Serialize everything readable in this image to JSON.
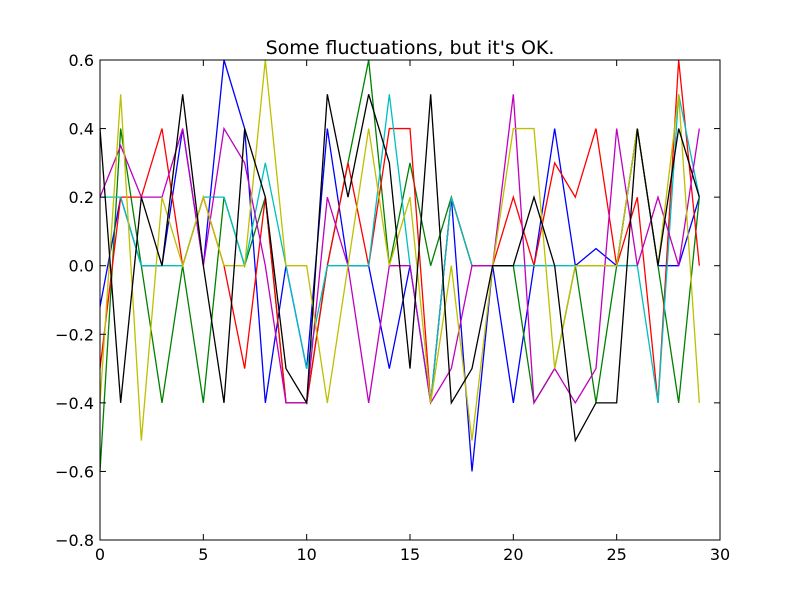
{
  "chart_data": {
    "type": "line",
    "title": "Some fluctuations, but it's OK.",
    "xlabel": "",
    "ylabel": "",
    "xlim": [
      0,
      30
    ],
    "ylim": [
      -0.8,
      0.6
    ],
    "grid": false,
    "x_ticks": [
      0,
      5,
      10,
      15,
      20,
      25,
      30
    ],
    "y_ticks": [
      -0.8,
      -0.6,
      -0.4,
      -0.2,
      0.0,
      0.2,
      0.4,
      0.6
    ],
    "x_tick_labels": [
      "0",
      "5",
      "10",
      "15",
      "20",
      "25",
      "30"
    ],
    "y_tick_labels": [
      "−0.8",
      "−0.6",
      "−0.4",
      "−0.2",
      "0.0",
      "0.2",
      "0.4",
      "0.6"
    ],
    "x": [
      0,
      1,
      2,
      3,
      4,
      5,
      6,
      7,
      8,
      9,
      10,
      11,
      12,
      13,
      14,
      15,
      16,
      17,
      18,
      19,
      20,
      21,
      22,
      23,
      24,
      25,
      26,
      27,
      28,
      29
    ],
    "series": [
      {
        "name": "blue",
        "color": "#0000ff",
        "values": [
          -0.12,
          0.2,
          0,
          0,
          0.4,
          0,
          0.6,
          0.4,
          -0.4,
          0,
          -0.3,
          0.4,
          0,
          0,
          -0.3,
          0,
          -0.4,
          0.2,
          -0.6,
          0,
          -0.4,
          0,
          0.4,
          0,
          0.05,
          0,
          0.4,
          0,
          0,
          0.2
        ]
      },
      {
        "name": "green",
        "color": "#008000",
        "values": [
          -0.6,
          0.4,
          0,
          -0.4,
          0,
          -0.4,
          0.2,
          0,
          0.2,
          -0.4,
          -0.4,
          0,
          0.3,
          0.6,
          0,
          0.3,
          0,
          0.2,
          0,
          0,
          0,
          -0.4,
          -0.3,
          0,
          -0.4,
          0,
          0.4,
          0,
          -0.4,
          0.2
        ]
      },
      {
        "name": "red",
        "color": "#ff0000",
        "values": [
          -0.3,
          0.2,
          0.2,
          0.4,
          0,
          0.2,
          0,
          -0.3,
          0.2,
          -0.4,
          -0.4,
          0,
          0.3,
          0,
          0.4,
          0.4,
          -0.4,
          0.2,
          0,
          0,
          0.2,
          0,
          0.3,
          0.2,
          0.4,
          0,
          0.2,
          -0.4,
          0.6,
          0
        ]
      },
      {
        "name": "cyan",
        "color": "#00bfbf",
        "values": [
          0.2,
          0.2,
          0,
          0,
          0,
          0.2,
          0.2,
          0,
          0.3,
          0,
          -0.3,
          0,
          0,
          0,
          0.5,
          0,
          -0.4,
          0.2,
          0,
          0,
          0,
          0,
          0,
          0,
          0,
          0,
          0,
          -0.4,
          0.5,
          0.2
        ]
      },
      {
        "name": "magenta",
        "color": "#bf00bf",
        "values": [
          0.2,
          0.35,
          0.2,
          0.2,
          0.4,
          0,
          0.4,
          0.3,
          0,
          -0.4,
          -0.4,
          0.2,
          0,
          -0.4,
          0,
          0,
          -0.4,
          -0.3,
          0,
          0,
          0.5,
          -0.4,
          -0.3,
          -0.4,
          -0.3,
          0.4,
          0,
          0.2,
          0,
          0.4
        ]
      },
      {
        "name": "yellow",
        "color": "#bfbf00",
        "values": [
          -0.4,
          0.5,
          -0.51,
          0.2,
          0,
          0.2,
          0,
          0,
          0.6,
          0,
          0,
          -0.4,
          0,
          0.4,
          0,
          0.2,
          -0.4,
          0,
          -0.51,
          0,
          0.4,
          0.4,
          -0.3,
          0,
          0,
          0,
          0.4,
          0,
          0.5,
          -0.4
        ]
      },
      {
        "name": "black",
        "color": "#000000",
        "values": [
          0.4,
          -0.4,
          0.2,
          0,
          0.5,
          0,
          -0.4,
          0.4,
          0.2,
          -0.3,
          -0.4,
          0.5,
          0.2,
          0.5,
          0.3,
          -0.3,
          0.5,
          -0.4,
          -0.3,
          0,
          0,
          0.2,
          0,
          -0.51,
          -0.4,
          -0.4,
          0.4,
          0,
          0.4,
          0.2
        ]
      }
    ]
  }
}
